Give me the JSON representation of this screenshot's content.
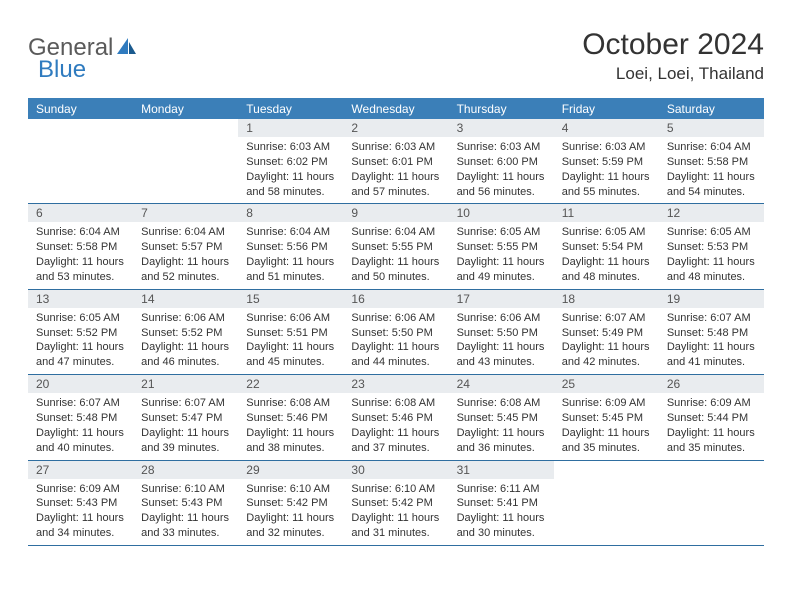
{
  "logo": {
    "text1": "General",
    "text2": "Blue"
  },
  "title": "October 2024",
  "location": "Loei, Loei, Thailand",
  "colors": {
    "header_bg": "#3b7fb8",
    "header_text": "#ffffff",
    "daynum_bg": "#e9ecef",
    "border": "#2f6ea0",
    "logo_gray": "#5a5a5a",
    "logo_blue": "#2f7bbf",
    "body_text": "#333333"
  },
  "dayNames": [
    "Sunday",
    "Monday",
    "Tuesday",
    "Wednesday",
    "Thursday",
    "Friday",
    "Saturday"
  ],
  "weeks": [
    [
      null,
      null,
      {
        "n": "1",
        "sr": "6:03 AM",
        "ss": "6:02 PM",
        "dl": "11 hours and 58 minutes."
      },
      {
        "n": "2",
        "sr": "6:03 AM",
        "ss": "6:01 PM",
        "dl": "11 hours and 57 minutes."
      },
      {
        "n": "3",
        "sr": "6:03 AM",
        "ss": "6:00 PM",
        "dl": "11 hours and 56 minutes."
      },
      {
        "n": "4",
        "sr": "6:03 AM",
        "ss": "5:59 PM",
        "dl": "11 hours and 55 minutes."
      },
      {
        "n": "5",
        "sr": "6:04 AM",
        "ss": "5:58 PM",
        "dl": "11 hours and 54 minutes."
      }
    ],
    [
      {
        "n": "6",
        "sr": "6:04 AM",
        "ss": "5:58 PM",
        "dl": "11 hours and 53 minutes."
      },
      {
        "n": "7",
        "sr": "6:04 AM",
        "ss": "5:57 PM",
        "dl": "11 hours and 52 minutes."
      },
      {
        "n": "8",
        "sr": "6:04 AM",
        "ss": "5:56 PM",
        "dl": "11 hours and 51 minutes."
      },
      {
        "n": "9",
        "sr": "6:04 AM",
        "ss": "5:55 PM",
        "dl": "11 hours and 50 minutes."
      },
      {
        "n": "10",
        "sr": "6:05 AM",
        "ss": "5:55 PM",
        "dl": "11 hours and 49 minutes."
      },
      {
        "n": "11",
        "sr": "6:05 AM",
        "ss": "5:54 PM",
        "dl": "11 hours and 48 minutes."
      },
      {
        "n": "12",
        "sr": "6:05 AM",
        "ss": "5:53 PM",
        "dl": "11 hours and 48 minutes."
      }
    ],
    [
      {
        "n": "13",
        "sr": "6:05 AM",
        "ss": "5:52 PM",
        "dl": "11 hours and 47 minutes."
      },
      {
        "n": "14",
        "sr": "6:06 AM",
        "ss": "5:52 PM",
        "dl": "11 hours and 46 minutes."
      },
      {
        "n": "15",
        "sr": "6:06 AM",
        "ss": "5:51 PM",
        "dl": "11 hours and 45 minutes."
      },
      {
        "n": "16",
        "sr": "6:06 AM",
        "ss": "5:50 PM",
        "dl": "11 hours and 44 minutes."
      },
      {
        "n": "17",
        "sr": "6:06 AM",
        "ss": "5:50 PM",
        "dl": "11 hours and 43 minutes."
      },
      {
        "n": "18",
        "sr": "6:07 AM",
        "ss": "5:49 PM",
        "dl": "11 hours and 42 minutes."
      },
      {
        "n": "19",
        "sr": "6:07 AM",
        "ss": "5:48 PM",
        "dl": "11 hours and 41 minutes."
      }
    ],
    [
      {
        "n": "20",
        "sr": "6:07 AM",
        "ss": "5:48 PM",
        "dl": "11 hours and 40 minutes."
      },
      {
        "n": "21",
        "sr": "6:07 AM",
        "ss": "5:47 PM",
        "dl": "11 hours and 39 minutes."
      },
      {
        "n": "22",
        "sr": "6:08 AM",
        "ss": "5:46 PM",
        "dl": "11 hours and 38 minutes."
      },
      {
        "n": "23",
        "sr": "6:08 AM",
        "ss": "5:46 PM",
        "dl": "11 hours and 37 minutes."
      },
      {
        "n": "24",
        "sr": "6:08 AM",
        "ss": "5:45 PM",
        "dl": "11 hours and 36 minutes."
      },
      {
        "n": "25",
        "sr": "6:09 AM",
        "ss": "5:45 PM",
        "dl": "11 hours and 35 minutes."
      },
      {
        "n": "26",
        "sr": "6:09 AM",
        "ss": "5:44 PM",
        "dl": "11 hours and 35 minutes."
      }
    ],
    [
      {
        "n": "27",
        "sr": "6:09 AM",
        "ss": "5:43 PM",
        "dl": "11 hours and 34 minutes."
      },
      {
        "n": "28",
        "sr": "6:10 AM",
        "ss": "5:43 PM",
        "dl": "11 hours and 33 minutes."
      },
      {
        "n": "29",
        "sr": "6:10 AM",
        "ss": "5:42 PM",
        "dl": "11 hours and 32 minutes."
      },
      {
        "n": "30",
        "sr": "6:10 AM",
        "ss": "5:42 PM",
        "dl": "11 hours and 31 minutes."
      },
      {
        "n": "31",
        "sr": "6:11 AM",
        "ss": "5:41 PM",
        "dl": "11 hours and 30 minutes."
      },
      null,
      null
    ]
  ],
  "labels": {
    "sunrise": "Sunrise:",
    "sunset": "Sunset:",
    "daylight": "Daylight:"
  }
}
